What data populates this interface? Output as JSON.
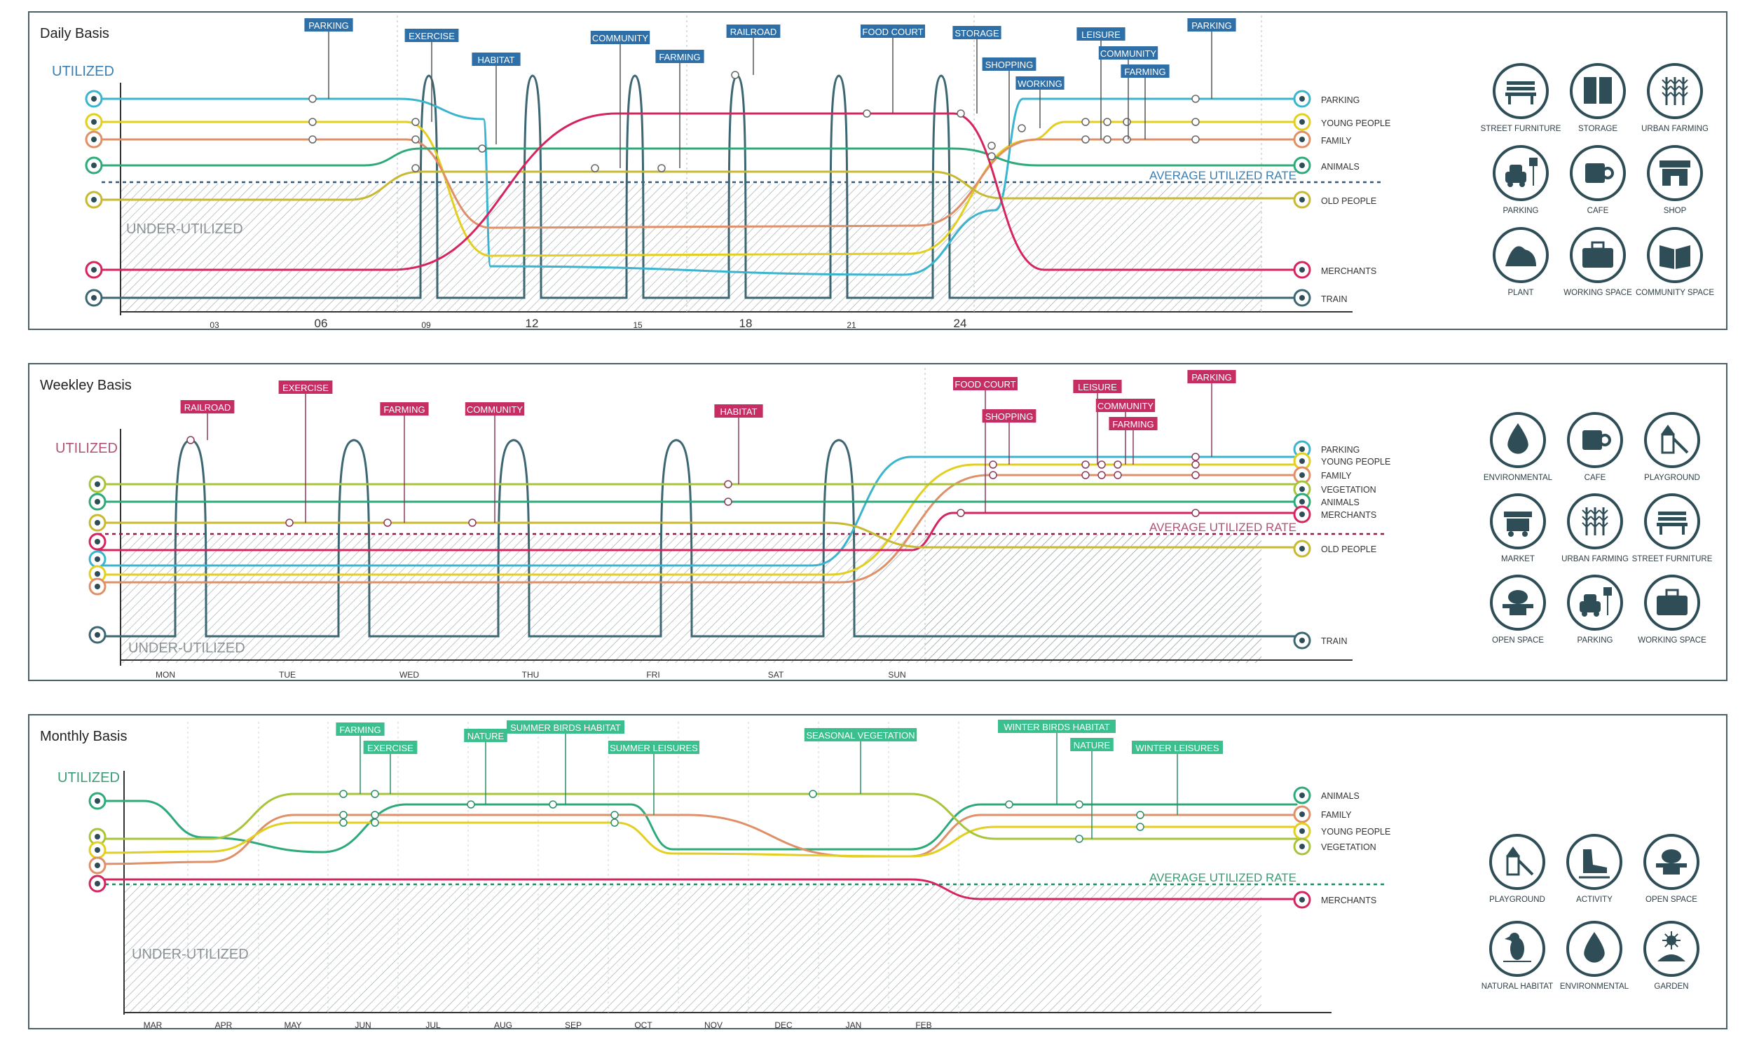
{
  "colors": {
    "frame": "#4a5f66",
    "parking": "#3ab4cf",
    "young": "#e2cf1f",
    "family": "#df9068",
    "animals": "#2eaa7a",
    "old": "#c8b832",
    "vegetation": "#a8c43a",
    "merchants": "#d6245e",
    "train": "#3d6673",
    "daily_tag": "#2f6fa8",
    "weekly_tag": "#c62e63",
    "monthly_tag": "#3cbf8f",
    "daily_util": "#3a7fb3",
    "weekly_util": "#b05378",
    "monthly_util": "#3b9c76",
    "icon": "#2f4d57"
  },
  "panels": [
    {
      "id": "daily",
      "title": "Daily Basis",
      "utilized": "UTILIZED",
      "under": "UNDER-UTILIZED",
      "avg": "AVERAGE UTILIZED RATE",
      "axis_ticks": [
        {
          "label": "03",
          "major": false
        },
        {
          "label": "06",
          "major": true
        },
        {
          "label": "09",
          "major": false
        },
        {
          "label": "12",
          "major": true
        },
        {
          "label": "15",
          "major": false
        },
        {
          "label": "18",
          "major": true
        },
        {
          "label": "21",
          "major": false
        },
        {
          "label": "24",
          "major": true
        }
      ],
      "lines": [
        {
          "key": "parking",
          "name": "PARKING",
          "icon": "car-icon"
        },
        {
          "key": "young",
          "name": "YOUNG PEOPLE",
          "icon": "young-people-icon"
        },
        {
          "key": "family",
          "name": "FAMILY",
          "icon": "family-icon"
        },
        {
          "key": "animals",
          "name": "ANIMALS",
          "icon": "bird-icon"
        },
        {
          "key": "old",
          "name": "OLD PEOPLE",
          "icon": "old-people-icon"
        },
        {
          "key": "merchants",
          "name": "MERCHANTS",
          "icon": "merchant-icon"
        },
        {
          "key": "train",
          "name": "TRAIN",
          "icon": "train-icon"
        }
      ],
      "tags": [
        "PARKING",
        "EXERCISE",
        "HABITAT",
        "COMMUNITY",
        "FARMING",
        "RAILROAD",
        "FOOD COURT",
        "STORAGE",
        "SHOPPING",
        "WORKING",
        "LEISURE",
        "COMMUNITY",
        "FARMING",
        "PARKING"
      ],
      "legend": [
        "STREET FURNITURE",
        "STORAGE",
        "URBAN FARMING",
        "PARKING",
        "CAFE",
        "SHOP",
        "PLANT",
        "WORKING SPACE",
        "COMMUNITY SPACE"
      ]
    },
    {
      "id": "weekly",
      "title": "Weekley Basis",
      "utilized": "UTILIZED",
      "under": "UNDER-UTILIZED",
      "avg": "AVERAGE UTILIZED RATE",
      "axis_ticks": [
        {
          "label": "MON"
        },
        {
          "label": "TUE"
        },
        {
          "label": "WED"
        },
        {
          "label": "THU"
        },
        {
          "label": "FRI"
        },
        {
          "label": "SAT"
        },
        {
          "label": "SUN"
        }
      ],
      "lines": [
        {
          "key": "parking",
          "name": "PARKING",
          "icon": "car-icon"
        },
        {
          "key": "young",
          "name": "YOUNG PEOPLE",
          "icon": "young-people-icon"
        },
        {
          "key": "family",
          "name": "FAMILY",
          "icon": "family-icon"
        },
        {
          "key": "vegetation",
          "name": "VEGETATION",
          "icon": "tree-icon"
        },
        {
          "key": "animals",
          "name": "ANIMALS",
          "icon": "bird-icon"
        },
        {
          "key": "merchants",
          "name": "MERCHANTS",
          "icon": "merchant-icon"
        },
        {
          "key": "old",
          "name": "OLD PEOPLE",
          "icon": "old-people-icon"
        },
        {
          "key": "train",
          "name": "TRAIN",
          "icon": "train-icon"
        }
      ],
      "tags": [
        "RAILROAD",
        "EXERCISE",
        "FARMING",
        "COMMUNITY",
        "HABITAT",
        "FOOD COURT",
        "SHOPPING",
        "LEISURE",
        "COMMUNITY",
        "FARMING",
        "PARKING"
      ],
      "legend": [
        "ENVIRONMENTAL",
        "CAFE",
        "PLAYGROUND",
        "MARKET",
        "URBAN FARMING",
        "STREET FURNITURE",
        "OPEN SPACE",
        "PARKING",
        "WORKING SPACE"
      ]
    },
    {
      "id": "monthly",
      "title": "Monthly Basis",
      "utilized": "UTILIZED",
      "under": "UNDER-UTILIZED",
      "avg": "AVERAGE UTILIZED RATE",
      "axis_ticks": [
        {
          "label": "MAR"
        },
        {
          "label": "APR"
        },
        {
          "label": "MAY"
        },
        {
          "label": "JUN"
        },
        {
          "label": "JUL"
        },
        {
          "label": "AUG"
        },
        {
          "label": "SEP"
        },
        {
          "label": "OCT"
        },
        {
          "label": "NOV"
        },
        {
          "label": "DEC"
        },
        {
          "label": "JAN"
        },
        {
          "label": "FEB"
        }
      ],
      "lines": [
        {
          "key": "animals",
          "name": "ANIMALS",
          "icon": "bird-icon"
        },
        {
          "key": "family",
          "name": "FAMILY",
          "icon": "family-icon"
        },
        {
          "key": "young",
          "name": "YOUNG PEOPLE",
          "icon": "young-people-icon"
        },
        {
          "key": "vegetation",
          "name": "VEGETATION",
          "icon": "tree-icon"
        },
        {
          "key": "merchants",
          "name": "MERCHANTS",
          "icon": "merchant-icon"
        }
      ],
      "tags": [
        "FARMING",
        "EXERCISE",
        "NATURE",
        "SUMMER BIRDS HABITAT",
        "SUMMER LEISURES",
        "SEASONAL VEGETATION",
        "WINTER BIRDS HABITAT",
        "NATURE",
        "WINTER LEISURES"
      ],
      "legend": [
        "PLAYGROUND",
        "ACTIVITY",
        "OPEN SPACE",
        "NATURAL HABITAT",
        "ENVIRONMENTAL",
        "GARDEN"
      ]
    }
  ]
}
